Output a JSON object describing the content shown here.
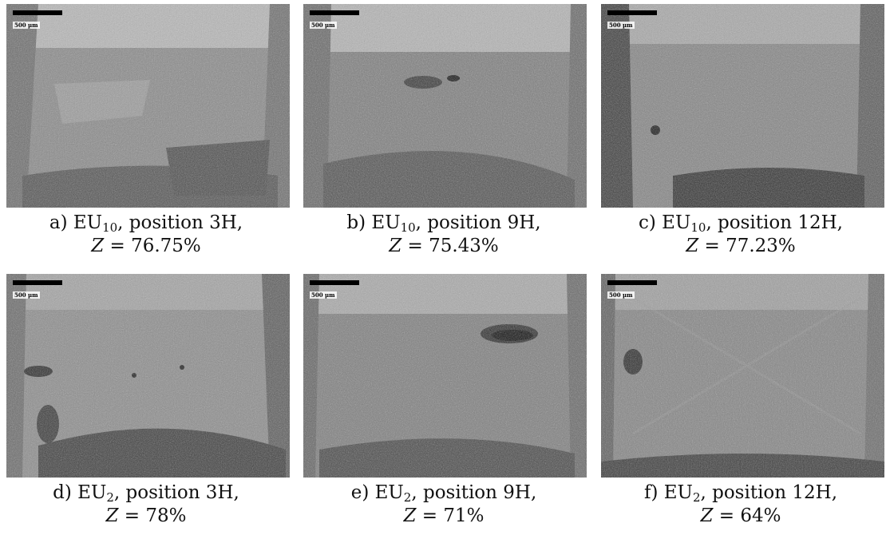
{
  "panels": [
    {
      "scale": "500 µm",
      "caption": {
        "letter": "a) EU",
        "sub": "10",
        "pos": ", position 3H,",
        "z": "Z",
        "zval": " = 76.75%"
      }
    },
    {
      "scale": "500 µm",
      "caption": {
        "letter": "b) EU",
        "sub": "10",
        "pos": ", position 9H,",
        "z": "Z",
        "zval": " = 75.43%"
      }
    },
    {
      "scale": "500 µm",
      "caption": {
        "letter": "c) EU",
        "sub": "10",
        "pos": ", position 12H,",
        "z": "Z",
        "zval": " = 77.23%"
      }
    },
    {
      "scale": "500 µm",
      "caption": {
        "letter": "d) EU",
        "sub": "2",
        "pos": ", position 3H,",
        "z": "Z",
        "zval": " = 78%"
      }
    },
    {
      "scale": "500 µm",
      "caption": {
        "letter": "e) EU",
        "sub": "2",
        "pos": ", position 9H,",
        "z": "Z",
        "zval": " = 71%"
      }
    },
    {
      "scale": "500 µm",
      "caption": {
        "letter": "f) EU",
        "sub": "2",
        "pos": ", position 12H,",
        "z": "Z",
        "zval": " = 64%"
      }
    }
  ]
}
